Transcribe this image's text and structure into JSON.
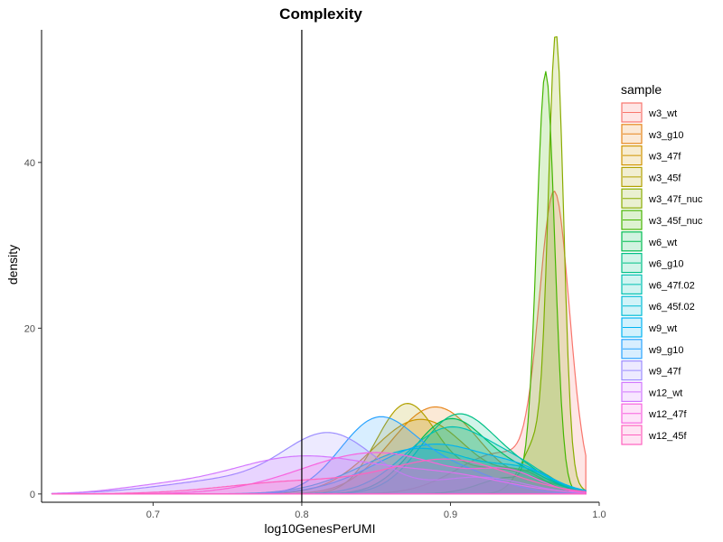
{
  "chart_data": {
    "type": "area",
    "title": "Complexity",
    "xlabel": "log10GenesPerUMI",
    "ylabel": "density",
    "xlim": [
      0.625,
      1.0
    ],
    "ylim": [
      -1,
      56
    ],
    "x_ticks": [
      0.7,
      0.8,
      0.9,
      1.0
    ],
    "x_tick_labels": [
      "0.7",
      "0.8",
      "0.9",
      "1.0"
    ],
    "y_ticks": [
      0,
      20,
      40
    ],
    "y_tick_labels": [
      "0",
      "20",
      "40"
    ],
    "vline": 0.8,
    "grid": false,
    "legend": {
      "title": "sample",
      "position": "right"
    },
    "series": [
      {
        "name": "w3_wt",
        "color": "#F8766D",
        "components": [
          [
            0.97,
            0.01,
            34
          ],
          [
            0.935,
            0.03,
            5
          ]
        ]
      },
      {
        "name": "w3_g10",
        "color": "#E7861B",
        "components": [
          [
            0.89,
            0.03,
            10.5
          ],
          [
            0.96,
            0.012,
            2
          ]
        ]
      },
      {
        "name": "w3_47f",
        "color": "#D09400",
        "components": [
          [
            0.88,
            0.032,
            9
          ],
          [
            0.95,
            0.015,
            2
          ]
        ]
      },
      {
        "name": "w3_45f",
        "color": "#B2A100",
        "components": [
          [
            0.87,
            0.02,
            10.5
          ],
          [
            0.93,
            0.03,
            3
          ]
        ]
      },
      {
        "name": "w3_47f_nuc",
        "color": "#89AC00",
        "components": [
          [
            0.971,
            0.005,
            50
          ],
          [
            0.962,
            0.012,
            7.5
          ]
        ]
      },
      {
        "name": "w3_45f_nuc",
        "color": "#45B500",
        "components": [
          [
            0.964,
            0.006,
            50
          ],
          [
            0.94,
            0.02,
            2
          ]
        ]
      },
      {
        "name": "w6_wt",
        "color": "#00BC51",
        "components": [
          [
            0.9,
            0.025,
            9
          ],
          [
            0.95,
            0.02,
            2
          ]
        ]
      },
      {
        "name": "w6_g10",
        "color": "#00C087",
        "components": [
          [
            0.905,
            0.025,
            9.5
          ],
          [
            0.95,
            0.02,
            2
          ]
        ]
      },
      {
        "name": "w6_47f.02",
        "color": "#00C0B2",
        "components": [
          [
            0.9,
            0.03,
            8
          ],
          [
            0.95,
            0.02,
            2
          ]
        ]
      },
      {
        "name": "w6_45f.02",
        "color": "#00BCD6",
        "components": [
          [
            0.88,
            0.04,
            5.5
          ],
          [
            0.95,
            0.02,
            2
          ]
        ]
      },
      {
        "name": "w9_wt",
        "color": "#00B3F2",
        "components": [
          [
            0.89,
            0.04,
            6
          ],
          [
            0.95,
            0.02,
            1.5
          ]
        ]
      },
      {
        "name": "w9_g10",
        "color": "#29A3FF",
        "components": [
          [
            0.85,
            0.025,
            8.5
          ],
          [
            0.9,
            0.03,
            3
          ]
        ]
      },
      {
        "name": "w9_47f",
        "color": "#9C8DFF",
        "components": [
          [
            0.82,
            0.03,
            6.5
          ],
          [
            0.76,
            0.05,
            1.8
          ],
          [
            0.92,
            0.03,
            2
          ]
        ]
      },
      {
        "name": "w12_wt",
        "color": "#D277FF",
        "components": [
          [
            0.8,
            0.05,
            4.5
          ],
          [
            0.7,
            0.03,
            0.6
          ],
          [
            0.9,
            0.04,
            2
          ]
        ]
      },
      {
        "name": "w12_47f",
        "color": "#F863DF",
        "components": [
          [
            0.85,
            0.05,
            5
          ],
          [
            0.94,
            0.02,
            2
          ]
        ]
      },
      {
        "name": "w12_45f",
        "color": "#FF62BF",
        "components": [
          [
            0.9,
            0.04,
            4
          ],
          [
            0.8,
            0.05,
            1.5
          ]
        ]
      }
    ]
  }
}
